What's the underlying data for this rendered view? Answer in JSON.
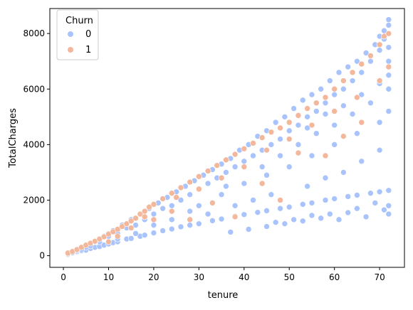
{
  "chart_data": {
    "type": "scatter",
    "title": "",
    "xlabel": "tenure",
    "ylabel": "TotalCharges",
    "xlim": [
      -3,
      75.5
    ],
    "ylim": [
      -420,
      8900
    ],
    "xticks": [
      0,
      10,
      20,
      30,
      40,
      50,
      60,
      70
    ],
    "yticks": [
      0,
      2000,
      4000,
      6000,
      8000
    ],
    "grid": false,
    "legend": {
      "title": "Churn",
      "position": "top-left",
      "entries": [
        {
          "label": "0",
          "color": "#a9c4fc"
        },
        {
          "label": "1",
          "color": "#f3b79b"
        }
      ]
    },
    "series": [
      {
        "name": "0",
        "color": "#a9c4fc",
        "points": [
          [
            2,
            110
          ],
          [
            3,
            150
          ],
          [
            4,
            180
          ],
          [
            5,
            200
          ],
          [
            6,
            260
          ],
          [
            7,
            300
          ],
          [
            8,
            330
          ],
          [
            9,
            380
          ],
          [
            10,
            420
          ],
          [
            11,
            470
          ],
          [
            12,
            500
          ],
          [
            14,
            600
          ],
          [
            15,
            620
          ],
          [
            17,
            700
          ],
          [
            18,
            740
          ],
          [
            20,
            820
          ],
          [
            22,
            900
          ],
          [
            24,
            960
          ],
          [
            26,
            1040
          ],
          [
            28,
            1100
          ],
          [
            30,
            1150
          ],
          [
            33,
            1260
          ],
          [
            35,
            1320
          ],
          [
            38,
            1420
          ],
          [
            40,
            1480
          ],
          [
            43,
            1560
          ],
          [
            45,
            1620
          ],
          [
            48,
            1700
          ],
          [
            50,
            1750
          ],
          [
            53,
            1850
          ],
          [
            55,
            1900
          ],
          [
            58,
            2000
          ],
          [
            60,
            2050
          ],
          [
            63,
            2130
          ],
          [
            65,
            2180
          ],
          [
            68,
            2250
          ],
          [
            70,
            2300
          ],
          [
            72,
            2350
          ],
          [
            5,
            300
          ],
          [
            8,
            500
          ],
          [
            10,
            700
          ],
          [
            12,
            800
          ],
          [
            14,
            1000
          ],
          [
            16,
            1100
          ],
          [
            18,
            1300
          ],
          [
            20,
            1500
          ],
          [
            22,
            1700
          ],
          [
            24,
            1800
          ],
          [
            26,
            2000
          ],
          [
            28,
            2200
          ],
          [
            30,
            2400
          ],
          [
            32,
            2600
          ],
          [
            34,
            2800
          ],
          [
            36,
            3000
          ],
          [
            38,
            3200
          ],
          [
            40,
            3400
          ],
          [
            42,
            3600
          ],
          [
            44,
            3800
          ],
          [
            46,
            4000
          ],
          [
            48,
            4200
          ],
          [
            50,
            4500
          ],
          [
            52,
            4700
          ],
          [
            54,
            5000
          ],
          [
            56,
            5200
          ],
          [
            58,
            5500
          ],
          [
            60,
            5800
          ],
          [
            62,
            6000
          ],
          [
            64,
            6300
          ],
          [
            66,
            6600
          ],
          [
            68,
            7000
          ],
          [
            70,
            7400
          ],
          [
            71,
            7800
          ],
          [
            72,
            8000
          ],
          [
            72,
            8500
          ],
          [
            72,
            8300
          ],
          [
            71,
            8100
          ],
          [
            70,
            7900
          ],
          [
            69,
            7600
          ],
          [
            67,
            7300
          ],
          [
            65,
            7000
          ],
          [
            63,
            6800
          ],
          [
            61,
            6600
          ],
          [
            59,
            6300
          ],
          [
            57,
            6000
          ],
          [
            55,
            5800
          ],
          [
            53,
            5600
          ],
          [
            51,
            5300
          ],
          [
            49,
            5000
          ],
          [
            47,
            4800
          ],
          [
            45,
            4500
          ],
          [
            43,
            4300
          ],
          [
            41,
            4000
          ],
          [
            39,
            3800
          ],
          [
            37,
            3500
          ],
          [
            35,
            3300
          ],
          [
            33,
            3100
          ],
          [
            31,
            2900
          ],
          [
            29,
            2700
          ],
          [
            27,
            2500
          ],
          [
            25,
            2300
          ],
          [
            23,
            2100
          ],
          [
            21,
            1900
          ],
          [
            19,
            1700
          ],
          [
            17,
            1500
          ],
          [
            15,
            1300
          ],
          [
            13,
            1100
          ],
          [
            11,
            900
          ],
          [
            9,
            700
          ],
          [
            7,
            500
          ],
          [
            30,
            1800
          ],
          [
            35,
            2200
          ],
          [
            40,
            2600
          ],
          [
            45,
            2900
          ],
          [
            50,
            3200
          ],
          [
            55,
            3600
          ],
          [
            60,
            4000
          ],
          [
            65,
            4400
          ],
          [
            70,
            4800
          ],
          [
            72,
            5200
          ],
          [
            62,
            3000
          ],
          [
            66,
            3400
          ],
          [
            70,
            3800
          ],
          [
            58,
            2800
          ],
          [
            54,
            2500
          ],
          [
            46,
            2200
          ],
          [
            42,
            2000
          ],
          [
            38,
            1800
          ],
          [
            32,
            1500
          ],
          [
            48,
            3600
          ],
          [
            52,
            4000
          ],
          [
            56,
            4400
          ],
          [
            60,
            4700
          ],
          [
            64,
            5100
          ],
          [
            68,
            5500
          ],
          [
            72,
            6000
          ],
          [
            72,
            6500
          ],
          [
            72,
            7000
          ],
          [
            72,
            7500
          ],
          [
            70,
            6200
          ],
          [
            66,
            5800
          ],
          [
            62,
            5400
          ],
          [
            58,
            5100
          ],
          [
            54,
            4600
          ],
          [
            44,
            3200
          ],
          [
            36,
            2500
          ],
          [
            28,
            1600
          ],
          [
            24,
            1300
          ],
          [
            20,
            1100
          ],
          [
            16,
            800
          ],
          [
            12,
            600
          ],
          [
            6,
            350
          ],
          [
            4,
            220
          ],
          [
            3,
            190
          ],
          [
            1,
            70
          ],
          [
            1,
            45
          ],
          [
            72,
            1500
          ],
          [
            72,
            1800
          ],
          [
            71,
            1650
          ],
          [
            69,
            1900
          ],
          [
            67,
            1400
          ],
          [
            65,
            1700
          ],
          [
            63,
            1550
          ],
          [
            61,
            1300
          ],
          [
            59,
            1500
          ],
          [
            57,
            1350
          ],
          [
            55,
            1450
          ],
          [
            53,
            1250
          ],
          [
            51,
            1300
          ],
          [
            49,
            1150
          ],
          [
            47,
            1200
          ],
          [
            45,
            1050
          ],
          [
            41,
            950
          ],
          [
            37,
            850
          ]
        ]
      },
      {
        "name": "1",
        "color": "#f3b79b",
        "points": [
          [
            1,
            70
          ],
          [
            1,
            95
          ],
          [
            2,
            150
          ],
          [
            3,
            220
          ],
          [
            4,
            300
          ],
          [
            5,
            380
          ],
          [
            6,
            450
          ],
          [
            7,
            520
          ],
          [
            8,
            600
          ],
          [
            9,
            680
          ],
          [
            10,
            780
          ],
          [
            11,
            860
          ],
          [
            12,
            950
          ],
          [
            13,
            1050
          ],
          [
            14,
            1150
          ],
          [
            15,
            1250
          ],
          [
            16,
            1350
          ],
          [
            17,
            1500
          ],
          [
            18,
            1600
          ],
          [
            19,
            1750
          ],
          [
            20,
            1850
          ],
          [
            22,
            2050
          ],
          [
            24,
            2250
          ],
          [
            26,
            2450
          ],
          [
            28,
            2650
          ],
          [
            30,
            2850
          ],
          [
            32,
            3050
          ],
          [
            34,
            3250
          ],
          [
            36,
            3450
          ],
          [
            38,
            3650
          ],
          [
            40,
            3850
          ],
          [
            42,
            4050
          ],
          [
            44,
            4250
          ],
          [
            46,
            4450
          ],
          [
            48,
            4600
          ],
          [
            50,
            4800
          ],
          [
            52,
            5050
          ],
          [
            54,
            5300
          ],
          [
            56,
            5500
          ],
          [
            58,
            5700
          ],
          [
            60,
            6000
          ],
          [
            62,
            6300
          ],
          [
            64,
            6600
          ],
          [
            66,
            6900
          ],
          [
            68,
            7200
          ],
          [
            70,
            7600
          ],
          [
            71,
            7900
          ],
          [
            72,
            8000
          ],
          [
            18,
            1400
          ],
          [
            25,
            2100
          ],
          [
            30,
            2400
          ],
          [
            35,
            2800
          ],
          [
            40,
            3200
          ],
          [
            45,
            3800
          ],
          [
            50,
            4200
          ],
          [
            55,
            4700
          ],
          [
            60,
            5200
          ],
          [
            65,
            5700
          ],
          [
            70,
            6300
          ],
          [
            72,
            6800
          ],
          [
            52,
            3700
          ],
          [
            58,
            3600
          ],
          [
            62,
            4300
          ],
          [
            66,
            4800
          ],
          [
            44,
            2600
          ],
          [
            48,
            2000
          ],
          [
            38,
            1400
          ],
          [
            33,
            1900
          ],
          [
            28,
            1300
          ],
          [
            10,
            500
          ],
          [
            12,
            700
          ],
          [
            15,
            1000
          ],
          [
            20,
            1300
          ],
          [
            24,
            1600
          ]
        ]
      }
    ]
  }
}
